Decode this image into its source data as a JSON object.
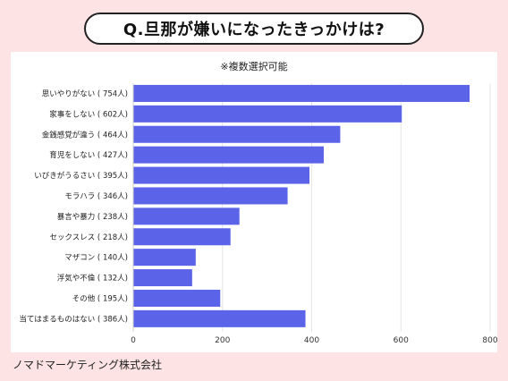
{
  "title": "Q.旦那が嫌いになったきっかけは?",
  "footer": "ノマドマーケティング株式会社",
  "chart_data": {
    "type": "bar",
    "orientation": "horizontal",
    "subtitle": "※複数選択可能",
    "categories": [
      "思いやりがない ( 754人)",
      "家事をしない ( 602人)",
      "金銭感覚が違う ( 464人)",
      "育児をしない ( 427人)",
      "いびきがうるさい ( 395人)",
      "モラハラ ( 346人)",
      "暴言や暴力 ( 238人)",
      "セックスレス ( 218人)",
      "マザコン ( 140人)",
      "浮気や不倫 ( 132人)",
      "その他 ( 195人)",
      "当てはまるものはない ( 386人)"
    ],
    "values": [
      754,
      602,
      464,
      427,
      395,
      346,
      238,
      218,
      140,
      132,
      195,
      386
    ],
    "xlim": [
      0,
      800
    ],
    "xticks": [
      "0",
      "200",
      "400",
      "600",
      "800"
    ],
    "grid": true,
    "bar_color": "#5b63e8",
    "grid_color": "#e6e6e6"
  }
}
